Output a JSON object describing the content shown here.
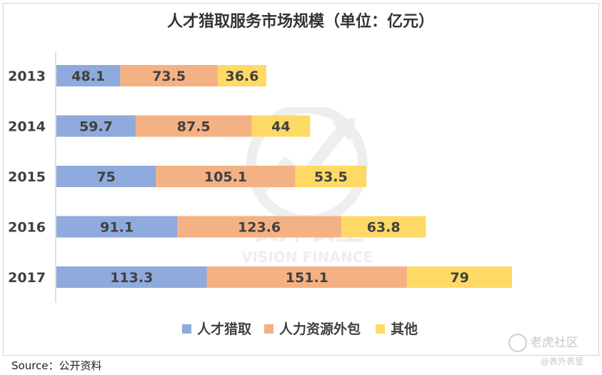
{
  "chart_data": {
    "type": "bar",
    "orientation": "horizontal",
    "stacked": true,
    "title": "人才猎取服务市场规模（单位：亿元）",
    "categories": [
      "2013",
      "2014",
      "2015",
      "2016",
      "2017"
    ],
    "series": [
      {
        "name": "人才猎取",
        "color": "#8faadc",
        "values": [
          48.1,
          59.7,
          75,
          91.1,
          113.3
        ]
      },
      {
        "name": "人力资源外包",
        "color": "#f4b183",
        "values": [
          73.5,
          87.5,
          105.1,
          123.6,
          151.1
        ]
      },
      {
        "name": "其他",
        "color": "#ffd966",
        "values": [
          36.6,
          44,
          53.5,
          63.8,
          79
        ]
      }
    ],
    "xlim": [
      0,
      380
    ],
    "grid": false,
    "legend_position": "bottom"
  },
  "source": "Source：公开资料",
  "watermark": {
    "main_cn": "表外表里",
    "main_en": "VISION FINANCE",
    "corner": "老虎社区",
    "corner_sub": "@表外表里"
  }
}
